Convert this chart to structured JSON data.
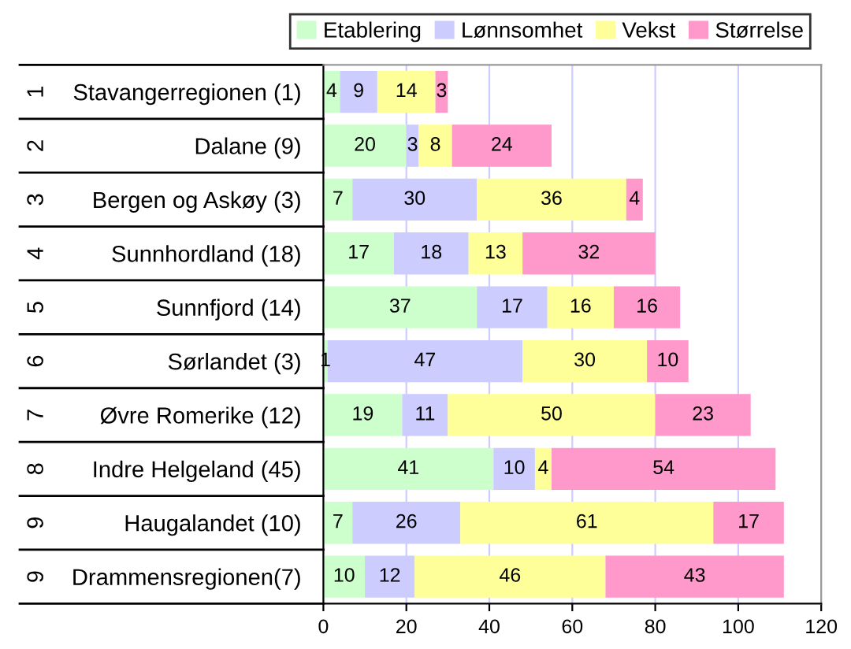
{
  "chart_data": {
    "type": "bar",
    "orientation": "horizontal",
    "stacked": true,
    "categories": [
      "Stavangerregionen (1)",
      "Dalane (9)",
      "Bergen og Askøy (3)",
      "Sunnhordland (18)",
      "Sunnfjord (14)",
      "Sørlandet (3)",
      "Øvre Romerike (12)",
      "Indre Helgeland (45)",
      "Haugalandet (10)",
      "Drammensregionen(7)"
    ],
    "series": [
      {
        "name": "Etablering",
        "color": "#ccffcc",
        "values": [
          4,
          20,
          7,
          17,
          37,
          1,
          19,
          41,
          7,
          10
        ]
      },
      {
        "name": "Lønnsomhet",
        "color": "#ccccff",
        "values": [
          9,
          3,
          30,
          18,
          17,
          47,
          11,
          10,
          26,
          12
        ]
      },
      {
        "name": "Vekst",
        "color": "#ffff99",
        "values": [
          14,
          8,
          36,
          13,
          16,
          30,
          50,
          4,
          61,
          46
        ]
      },
      {
        "name": "Størrelse",
        "color": "#ff99cc",
        "values": [
          3,
          24,
          4,
          32,
          16,
          10,
          23,
          54,
          17,
          43
        ]
      }
    ],
    "annotations": [
      "1",
      "2",
      "3",
      "4",
      "5",
      "6",
      "7",
      "8",
      "9",
      "9"
    ],
    "xlim": [
      0,
      120
    ],
    "xticks": [
      0,
      20,
      40,
      60,
      80,
      100,
      120
    ],
    "grid": "x",
    "legend": "top right",
    "data_labels": true
  }
}
